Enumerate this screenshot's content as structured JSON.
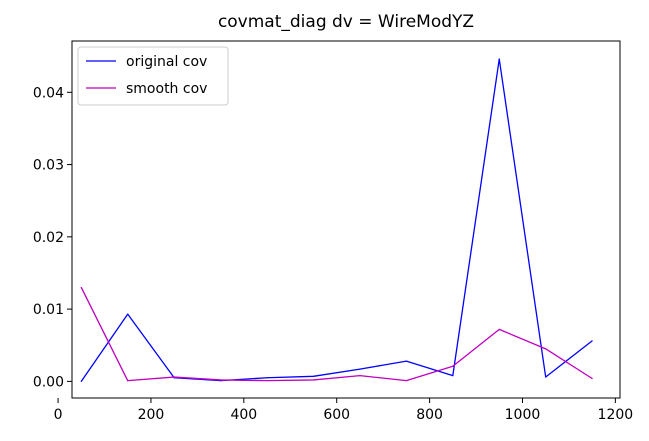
{
  "chart_data": {
    "type": "line",
    "title": "covmat_diag dv = WireModYZ",
    "xlabel": "",
    "ylabel": "",
    "x": [
      50,
      150,
      250,
      350,
      450,
      550,
      650,
      750,
      850,
      950,
      1050,
      1150
    ],
    "xlim": [
      30,
      1210
    ],
    "ylim": [
      -0.0023,
      0.0471
    ],
    "x_ticks": [
      0,
      200,
      400,
      600,
      800,
      1000,
      1200
    ],
    "x_tick_labels": [
      "0",
      "200",
      "400",
      "600",
      "800",
      "1000",
      "1200"
    ],
    "y_ticks": [
      0.0,
      0.01,
      0.02,
      0.03,
      0.04
    ],
    "y_tick_labels": [
      "0.00",
      "0.01",
      "0.02",
      "0.03",
      "0.04"
    ],
    "grid": false,
    "legend_position": "top-left",
    "series": [
      {
        "name": "original cov",
        "color": "#0000ff",
        "values": [
          0.0,
          0.0093,
          0.0005,
          0.0001,
          0.0005,
          0.0007,
          0.0017,
          0.0028,
          0.0008,
          0.0446,
          0.0006,
          0.0056
        ]
      },
      {
        "name": "smooth cov",
        "color": "#bf00bf",
        "values": [
          0.013,
          0.0001,
          0.0006,
          0.0002,
          0.0001,
          0.0002,
          0.0008,
          0.0001,
          0.0021,
          0.0072,
          0.0045,
          0.0004
        ]
      }
    ]
  }
}
